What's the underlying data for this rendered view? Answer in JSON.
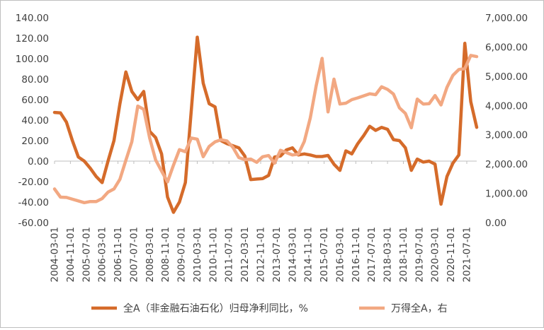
{
  "chart_data": {
    "type": "line",
    "title": "",
    "x_tick_labels": [
      "2004-03-01",
      "2004-11-01",
      "2005-07-01",
      "2006-03-01",
      "2006-11-01",
      "2007-07-01",
      "2008-03-01",
      "2008-11-01",
      "2009-07-01",
      "2010-03-01",
      "2010-11-01",
      "2011-07-01",
      "2012-03-01",
      "2012-11-01",
      "2013-07-01",
      "2014-03-01",
      "2014-11-01",
      "2015-07-01",
      "2016-03-01",
      "2016-11-01",
      "2017-07-01",
      "2018-03-01",
      "2018-11-01",
      "2019-07-01",
      "2020-03-01",
      "2020-11-01",
      "2021-07-01"
    ],
    "y_left": {
      "min": -60,
      "max": 140,
      "step": 20,
      "tick_labels": [
        "140.00",
        "120.00",
        "100.00",
        "80.00",
        "60.00",
        "40.00",
        "20.00",
        "0.00",
        "-20.00",
        "-40.00",
        "-60.00"
      ]
    },
    "y_right": {
      "min": 0,
      "max": 7000,
      "step": 1000,
      "tick_labels": [
        "7,000.00",
        "6,000.00",
        "5,000.00",
        "4,000.00",
        "3,000.00",
        "2,000.00",
        "1,000.00",
        "0.00"
      ]
    },
    "grid": false,
    "legend_position": "bottom",
    "series": [
      {
        "name": "全A（非金融石油石化）归母净利同比，%",
        "axis": "left",
        "color": "#d56b2a",
        "points": [
          [
            "2004-03",
            47.5
          ],
          [
            "2004-06",
            47
          ],
          [
            "2004-09",
            38
          ],
          [
            "2004-12",
            20
          ],
          [
            "2005-03",
            4
          ],
          [
            "2005-06",
            0
          ],
          [
            "2005-09",
            -7
          ],
          [
            "2005-12",
            -15
          ],
          [
            "2006-03",
            -21
          ],
          [
            "2006-06",
            0
          ],
          [
            "2006-09",
            20
          ],
          [
            "2006-12",
            56
          ],
          [
            "2007-03",
            87
          ],
          [
            "2007-06",
            68
          ],
          [
            "2007-09",
            60
          ],
          [
            "2007-12",
            68
          ],
          [
            "2008-03",
            29
          ],
          [
            "2008-06",
            23
          ],
          [
            "2008-09",
            7
          ],
          [
            "2008-12",
            -35
          ],
          [
            "2009-03",
            -50
          ],
          [
            "2009-06",
            -40
          ],
          [
            "2009-09",
            -21
          ],
          [
            "2009-12",
            50
          ],
          [
            "2010-03",
            121
          ],
          [
            "2010-06",
            76
          ],
          [
            "2010-09",
            56
          ],
          [
            "2010-12",
            53
          ],
          [
            "2011-03",
            20
          ],
          [
            "2011-06",
            17
          ],
          [
            "2011-09",
            15
          ],
          [
            "2011-12",
            13
          ],
          [
            "2012-03",
            5
          ],
          [
            "2012-06",
            -18
          ],
          [
            "2012-09",
            -17.5
          ],
          [
            "2012-12",
            -17
          ],
          [
            "2013-03",
            -14
          ],
          [
            "2013-06",
            4
          ],
          [
            "2013-09",
            5
          ],
          [
            "2013-12",
            11
          ],
          [
            "2014-03",
            13
          ],
          [
            "2014-06",
            6
          ],
          [
            "2014-09",
            7
          ],
          [
            "2014-12",
            6
          ],
          [
            "2015-03",
            4.5
          ],
          [
            "2015-06",
            4.5
          ],
          [
            "2015-09",
            5.5
          ],
          [
            "2015-12",
            -3
          ],
          [
            "2016-03",
            -9
          ],
          [
            "2016-06",
            10
          ],
          [
            "2016-09",
            7
          ],
          [
            "2016-12",
            17
          ],
          [
            "2017-03",
            25
          ],
          [
            "2017-06",
            34
          ],
          [
            "2017-09",
            30
          ],
          [
            "2017-12",
            33
          ],
          [
            "2018-03",
            31
          ],
          [
            "2018-06",
            21
          ],
          [
            "2018-09",
            20
          ],
          [
            "2018-12",
            13
          ],
          [
            "2019-03",
            -9
          ],
          [
            "2019-06",
            2
          ],
          [
            "2019-09",
            -1
          ],
          [
            "2019-12",
            0
          ],
          [
            "2020-03",
            -3
          ],
          [
            "2020-06",
            -42
          ],
          [
            "2020-09",
            -15
          ],
          [
            "2020-12",
            -2
          ],
          [
            "2021-03",
            6
          ],
          [
            "2021-06",
            115
          ],
          [
            "2021-09",
            58
          ],
          [
            "2021-12",
            33
          ]
        ]
      },
      {
        "name": "万得全A，右",
        "axis": "right",
        "color": "#f2a882",
        "points": [
          [
            "2004-03",
            1150
          ],
          [
            "2004-06",
            870
          ],
          [
            "2004-09",
            860
          ],
          [
            "2004-12",
            800
          ],
          [
            "2005-03",
            740
          ],
          [
            "2005-06",
            680
          ],
          [
            "2005-09",
            720
          ],
          [
            "2005-12",
            720
          ],
          [
            "2006-03",
            820
          ],
          [
            "2006-06",
            1040
          ],
          [
            "2006-09",
            1150
          ],
          [
            "2006-12",
            1480
          ],
          [
            "2007-03",
            2130
          ],
          [
            "2007-06",
            2760
          ],
          [
            "2007-09",
            3980
          ],
          [
            "2007-12",
            3870
          ],
          [
            "2008-03",
            2890
          ],
          [
            "2008-06",
            2140
          ],
          [
            "2008-09",
            1760
          ],
          [
            "2008-12",
            1390
          ],
          [
            "2009-03",
            1960
          ],
          [
            "2009-06",
            2490
          ],
          [
            "2009-09",
            2420
          ],
          [
            "2009-12",
            2890
          ],
          [
            "2010-03",
            2850
          ],
          [
            "2010-06",
            2250
          ],
          [
            "2010-09",
            2600
          ],
          [
            "2010-12",
            2760
          ],
          [
            "2011-03",
            2830
          ],
          [
            "2011-06",
            2790
          ],
          [
            "2011-09",
            2570
          ],
          [
            "2011-12",
            2220
          ],
          [
            "2012-03",
            2150
          ],
          [
            "2012-06",
            2170
          ],
          [
            "2012-09",
            2060
          ],
          [
            "2012-12",
            2250
          ],
          [
            "2013-03",
            2290
          ],
          [
            "2013-06",
            2030
          ],
          [
            "2013-09",
            2470
          ],
          [
            "2013-12",
            2390
          ],
          [
            "2014-03",
            2310
          ],
          [
            "2014-06",
            2340
          ],
          [
            "2014-09",
            2770
          ],
          [
            "2014-12",
            3570
          ],
          [
            "2015-03",
            4680
          ],
          [
            "2015-06",
            5610
          ],
          [
            "2015-09",
            3780
          ],
          [
            "2015-12",
            4900
          ],
          [
            "2016-03",
            4050
          ],
          [
            "2016-06",
            4080
          ],
          [
            "2016-09",
            4200
          ],
          [
            "2016-12",
            4260
          ],
          [
            "2017-03",
            4330
          ],
          [
            "2017-06",
            4400
          ],
          [
            "2017-09",
            4370
          ],
          [
            "2017-12",
            4640
          ],
          [
            "2018-03",
            4550
          ],
          [
            "2018-06",
            4390
          ],
          [
            "2018-09",
            3920
          ],
          [
            "2018-12",
            3730
          ],
          [
            "2019-03",
            3240
          ],
          [
            "2019-06",
            4220
          ],
          [
            "2019-09",
            4050
          ],
          [
            "2019-12",
            4060
          ],
          [
            "2020-03",
            4340
          ],
          [
            "2020-06",
            4020
          ],
          [
            "2020-09",
            4620
          ],
          [
            "2020-12",
            5030
          ],
          [
            "2021-03",
            5230
          ],
          [
            "2021-06",
            5260
          ],
          [
            "2021-09",
            5710
          ],
          [
            "2021-12",
            5670
          ]
        ]
      }
    ]
  }
}
